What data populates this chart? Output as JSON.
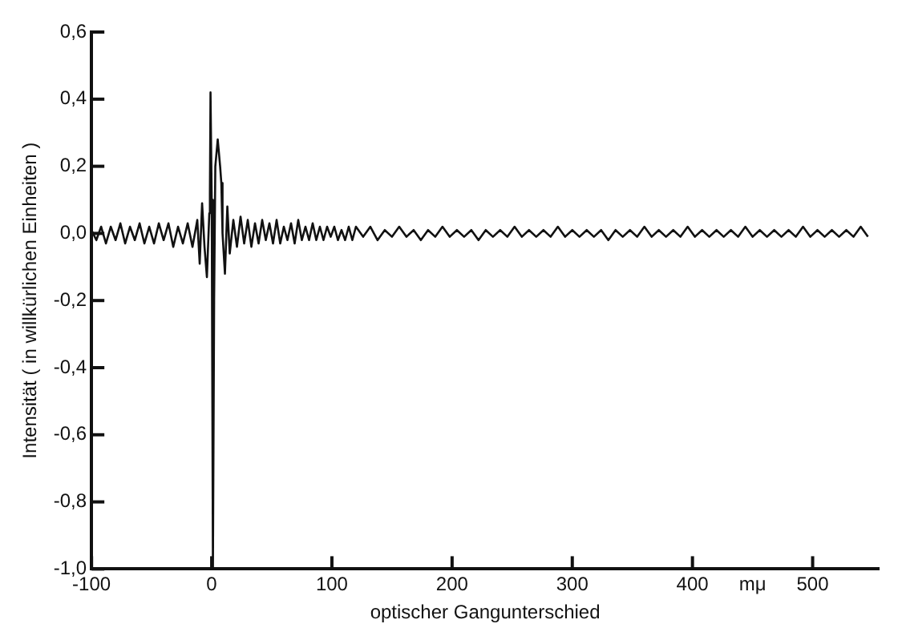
{
  "chart_data": {
    "type": "line",
    "xlabel": "optischer Gangunterschied",
    "ylabel": "Intensität ( in willkürlichen Einheiten )",
    "annotations": [
      "mμ"
    ],
    "xlim": [
      -100,
      555
    ],
    "xticks": [
      -100,
      0,
      100,
      200,
      300,
      400,
      500
    ],
    "ylim": [
      -1.0,
      0.6
    ],
    "yticks": [
      {
        "value": -1.0,
        "label": "-1,0"
      },
      {
        "value": -0.8,
        "label": "-0,8"
      },
      {
        "value": -0.6,
        "label": "-0,6"
      },
      {
        "value": -0.4,
        "label": "-0,4"
      },
      {
        "value": -0.2,
        "label": "-0,2"
      },
      {
        "value": 0,
        "label": "0,0"
      },
      {
        "value": 0.2,
        "label": "0,2"
      },
      {
        "value": 0.4,
        "label": "0,4"
      },
      {
        "value": 0.6,
        "label": "0,6"
      }
    ],
    "grid": false,
    "legend": false,
    "marker": "none",
    "line_style": "solid",
    "series": [
      {
        "color": "#111111",
        "x": [
          -100,
          -96,
          -92,
          -88,
          -84,
          -80,
          -76,
          -72,
          -68,
          -64,
          -60,
          -56,
          -52,
          -48,
          -44,
          -40,
          -36,
          -32,
          -28,
          -24,
          -20,
          -16,
          -12,
          -10,
          -8,
          -6,
          -4,
          -2,
          -1.5,
          -1,
          0,
          1,
          2,
          3,
          5,
          7,
          8,
          9,
          11,
          13,
          15,
          18,
          21,
          24,
          27,
          30,
          33,
          36,
          39,
          42,
          45,
          48,
          51,
          54,
          57,
          60,
          63,
          66,
          69,
          72,
          75,
          78,
          81,
          84,
          87,
          90,
          93,
          96,
          99,
          102,
          105,
          108,
          111,
          114,
          117,
          120,
          126,
          132,
          138,
          144,
          150,
          156,
          162,
          168,
          174,
          180,
          186,
          192,
          198,
          204,
          210,
          216,
          222,
          228,
          234,
          240,
          246,
          252,
          258,
          264,
          270,
          276,
          282,
          288,
          294,
          300,
          306,
          312,
          318,
          324,
          330,
          336,
          342,
          348,
          354,
          360,
          366,
          372,
          378,
          384,
          390,
          396,
          402,
          408,
          414,
          420,
          426,
          432,
          438,
          444,
          450,
          456,
          462,
          468,
          474,
          480,
          486,
          492,
          498,
          504,
          510,
          516,
          522,
          528,
          534,
          540,
          546
        ],
        "values": [
          0.01,
          -0.02,
          0.02,
          -0.03,
          0.02,
          -0.02,
          0.03,
          -0.03,
          0.02,
          -0.02,
          0.03,
          -0.03,
          0.02,
          -0.03,
          0.03,
          -0.02,
          0.03,
          -0.04,
          0.02,
          -0.03,
          0.03,
          -0.04,
          0.04,
          -0.09,
          0.09,
          -0.04,
          -0.13,
          0.06,
          0.12,
          0.42,
          0.1,
          -1.0,
          -0.2,
          0.2,
          0.28,
          0.2,
          0.15,
          0.0,
          -0.12,
          0.08,
          -0.06,
          0.04,
          -0.04,
          0.05,
          -0.03,
          0.04,
          -0.04,
          0.03,
          -0.03,
          0.04,
          -0.02,
          0.03,
          -0.03,
          0.04,
          -0.03,
          0.02,
          -0.02,
          0.03,
          -0.03,
          0.04,
          -0.02,
          0.02,
          -0.02,
          0.03,
          -0.02,
          0.02,
          -0.02,
          0.02,
          -0.01,
          0.02,
          -0.02,
          0.01,
          -0.02,
          0.02,
          -0.02,
          0.02,
          -0.01,
          0.02,
          -0.02,
          0.01,
          -0.01,
          0.02,
          -0.01,
          0.01,
          -0.02,
          0.01,
          -0.01,
          0.02,
          -0.01,
          0.01,
          -0.01,
          0.01,
          -0.02,
          0.01,
          -0.01,
          0.01,
          -0.01,
          0.02,
          -0.01,
          0.01,
          -0.01,
          0.01,
          -0.01,
          0.02,
          -0.01,
          0.01,
          -0.01,
          0.01,
          -0.01,
          0.01,
          -0.02,
          0.01,
          -0.01,
          0.01,
          -0.01,
          0.02,
          -0.01,
          0.01,
          -0.01,
          0.01,
          -0.01,
          0.02,
          -0.01,
          0.01,
          -0.01,
          0.01,
          -0.01,
          0.01,
          -0.01,
          0.02,
          -0.01,
          0.01,
          -0.01,
          0.01,
          -0.01,
          0.01,
          -0.01,
          0.02,
          -0.01,
          0.01,
          -0.01,
          0.01,
          -0.01,
          0.01,
          -0.01,
          0.02,
          -0.01
        ]
      }
    ]
  }
}
